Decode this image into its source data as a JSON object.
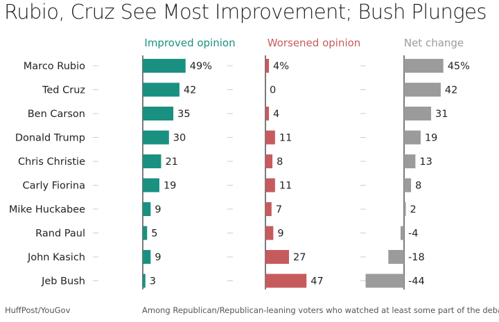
{
  "title": "Rubio, Cruz See Most Improvement; Bush Plunges",
  "source": "HuffPost/YouGov",
  "note": "Among Republican/Republican-leaning voters who watched at least some part of the debate",
  "colors": {
    "improved": "#1a9081",
    "worsened": "#c65b5e",
    "net": "#9b9b9b",
    "divider": "#222222",
    "tick": "#cccccc"
  },
  "chart_data": {
    "type": "bar",
    "categories": [
      "Marco Rubio",
      "Ted Cruz",
      "Ben Carson",
      "Donald Trump",
      "Chris Christie",
      "Carly Fiorina",
      "Mike Huckabee",
      "Rand Paul",
      "John Kasich",
      "Jeb Bush"
    ],
    "series": [
      {
        "name": "Improved opinion",
        "values": [
          49,
          42,
          35,
          30,
          21,
          19,
          9,
          5,
          9,
          3
        ],
        "labels": [
          "49%",
          "42",
          "35",
          "30",
          "21",
          "19",
          "9",
          "5",
          "9",
          "3"
        ]
      },
      {
        "name": "Worsened opinion",
        "values": [
          4,
          0,
          4,
          11,
          8,
          11,
          7,
          9,
          27,
          47
        ],
        "labels": [
          "4%",
          "0",
          "4",
          "11",
          "8",
          "11",
          "7",
          "9",
          "27",
          "47"
        ]
      },
      {
        "name": "Net change",
        "values": [
          45,
          42,
          31,
          19,
          13,
          8,
          2,
          -4,
          -18,
          -44
        ],
        "labels": [
          "45%",
          "42",
          "31",
          "19",
          "13",
          "8",
          "2",
          "-4",
          "-18",
          "-44"
        ]
      }
    ],
    "grid": false,
    "legend": "none"
  }
}
